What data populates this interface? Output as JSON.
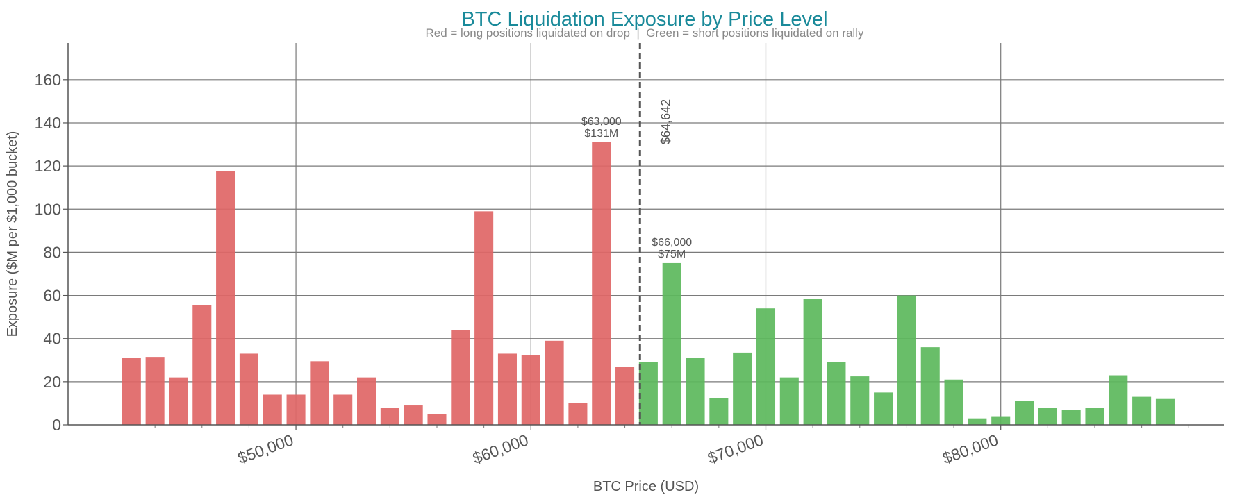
{
  "chart_data": {
    "type": "bar",
    "title": "BTC Liquidation Exposure by Price Level",
    "subtitle": "Red = long positions liquidated on drop  |  Green = short positions liquidated on rally",
    "xlabel": "BTC Price (USD)",
    "ylabel": "Exposure ($M per $1,000 bucket)",
    "xlim": [
      40300,
      89500
    ],
    "ylim": [
      0,
      177
    ],
    "x_ticks": [
      50000,
      60000,
      70000,
      80000
    ],
    "x_tick_labels": [
      "$50,000",
      "$60,000",
      "$70,000",
      "$80,000"
    ],
    "y_ticks": [
      0,
      20,
      40,
      60,
      80,
      100,
      120,
      140,
      160
    ],
    "y_tick_labels": [
      "0",
      "20",
      "40",
      "60",
      "80",
      "100",
      "120",
      "140",
      "160"
    ],
    "grid": true,
    "bar_width": 800,
    "colors": {
      "long": "#e06666",
      "short": "#5cb85c",
      "title": "#1a8a9a",
      "reference_line": "#555555"
    },
    "current_price": 64642,
    "current_price_label": "$64,642",
    "series": [
      {
        "name": "long",
        "x": [
          43000,
          44000,
          45000,
          46000,
          47000,
          48000,
          49000,
          50000,
          51000,
          52000,
          53000,
          54000,
          55000,
          56000,
          57000,
          58000,
          59000,
          60000,
          61000,
          62000,
          63000,
          64000
        ],
        "values": [
          31,
          31.5,
          22,
          55.5,
          117.5,
          33,
          14,
          14,
          29.5,
          14,
          22,
          8,
          9,
          5,
          44,
          99,
          33,
          32.5,
          39,
          10,
          131,
          27
        ]
      },
      {
        "name": "short",
        "x": [
          65000,
          66000,
          67000,
          68000,
          69000,
          70000,
          71000,
          72000,
          73000,
          74000,
          75000,
          76000,
          77000,
          78000,
          79000,
          80000,
          81000,
          82000,
          83000,
          84000,
          85000,
          86000,
          87000
        ],
        "values": [
          29,
          75,
          31,
          12.5,
          33.5,
          54,
          22,
          58.5,
          29,
          22.5,
          15,
          60,
          36,
          21,
          3,
          4,
          11,
          8,
          7,
          8,
          23,
          13,
          12
        ]
      }
    ],
    "annotations": [
      {
        "x": 63000,
        "y": 131,
        "lines": [
          "$63,000",
          "$131M"
        ]
      },
      {
        "x": 66000,
        "y": 75,
        "lines": [
          "$66,000",
          "$75M"
        ]
      }
    ]
  }
}
